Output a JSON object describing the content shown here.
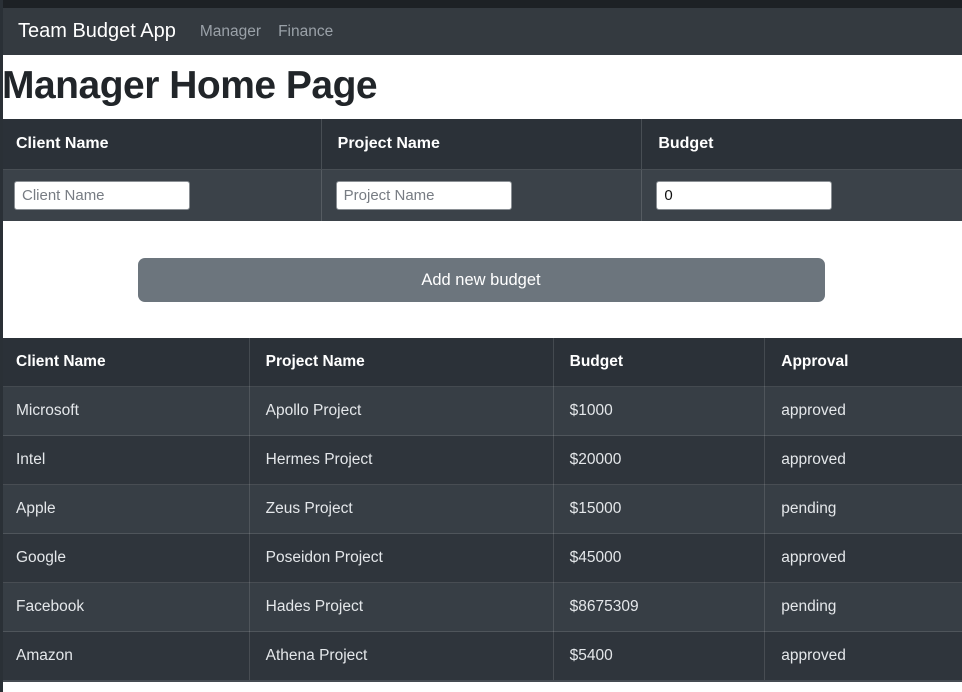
{
  "navbar": {
    "brand": "Team Budget App",
    "links": [
      {
        "label": "Manager"
      },
      {
        "label": "Finance"
      }
    ]
  },
  "page_title": "Manager Home Page",
  "form": {
    "fields": [
      {
        "header": "Client Name",
        "placeholder": "Client Name",
        "value": ""
      },
      {
        "header": "Project Name",
        "placeholder": "Project Name",
        "value": ""
      },
      {
        "header": "Budget",
        "placeholder": "",
        "value": "0"
      }
    ],
    "submit_label": "Add new budget"
  },
  "table": {
    "headers": [
      "Client Name",
      "Project Name",
      "Budget",
      "Approval"
    ],
    "rows": [
      [
        "Microsoft",
        "Apollo Project",
        "$1000",
        "approved"
      ],
      [
        "Intel",
        "Hermes Project",
        "$20000",
        "approved"
      ],
      [
        "Apple",
        "Zeus Project",
        "$15000",
        "pending"
      ],
      [
        "Google",
        "Poseidon Project",
        "$45000",
        "approved"
      ],
      [
        "Facebook",
        "Hades Project",
        "$8675309",
        "pending"
      ],
      [
        "Amazon",
        "Athena Project",
        "$5400",
        "approved"
      ]
    ]
  },
  "colors": {
    "navbar_bg": "#343a40",
    "top_edge": "#1d2125",
    "panel_header_bg": "#2b3138",
    "panel_body_bg": "#3b4249",
    "table_header_bg": "#2b3138",
    "row_odd_bg": "#373e45",
    "row_even_bg": "#2f353c",
    "button_bg": "#6c757d",
    "heading_color": "#212529",
    "nav_link_color": "#9aa1a8"
  }
}
